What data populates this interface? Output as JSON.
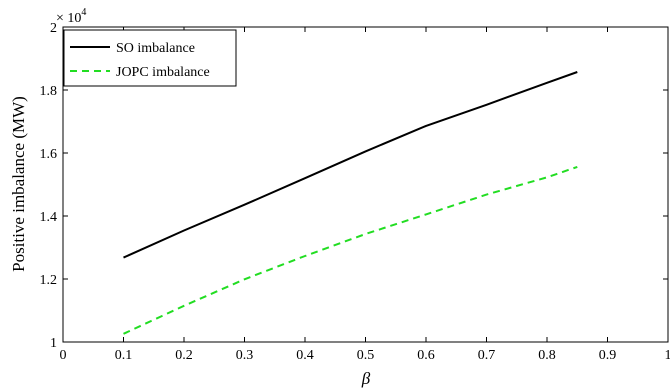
{
  "chart_data": {
    "type": "line",
    "title": "",
    "xlabel": "β",
    "ylabel": "Positive imbalance (MW)",
    "xlim": [
      0,
      1
    ],
    "ylim": [
      10000,
      20000
    ],
    "y_multiplier_text": "× 10",
    "y_multiplier_exponent": "4",
    "xticks": [
      0,
      0.1,
      0.2,
      0.3,
      0.4,
      0.5,
      0.6,
      0.7,
      0.8,
      0.9,
      1
    ],
    "xtick_labels": [
      "0",
      "0.1",
      "0.2",
      "0.3",
      "0.4",
      "0.5",
      "0.6",
      "0.7",
      "0.8",
      "0.9",
      "1"
    ],
    "yticks": [
      10000,
      12000,
      14000,
      16000,
      18000,
      20000
    ],
    "ytick_labels": [
      "1",
      "1.2",
      "1.4",
      "1.6",
      "1.8",
      "2"
    ],
    "grid": false,
    "legend_position": "top-left",
    "x": [
      0.1,
      0.2,
      0.3,
      0.4,
      0.5,
      0.6,
      0.7,
      0.8,
      0.85
    ],
    "series": [
      {
        "name": "SO imbalance",
        "color": "#000000",
        "dash": "solid",
        "values": [
          12680,
          13540,
          14360,
          15200,
          16050,
          16860,
          17530,
          18230,
          18570
        ]
      },
      {
        "name": "JOPC imbalance",
        "color": "#22dd22",
        "dash": "dashed",
        "values": [
          10260,
          11150,
          11990,
          12730,
          13430,
          14050,
          14680,
          15230,
          15560
        ]
      }
    ]
  }
}
